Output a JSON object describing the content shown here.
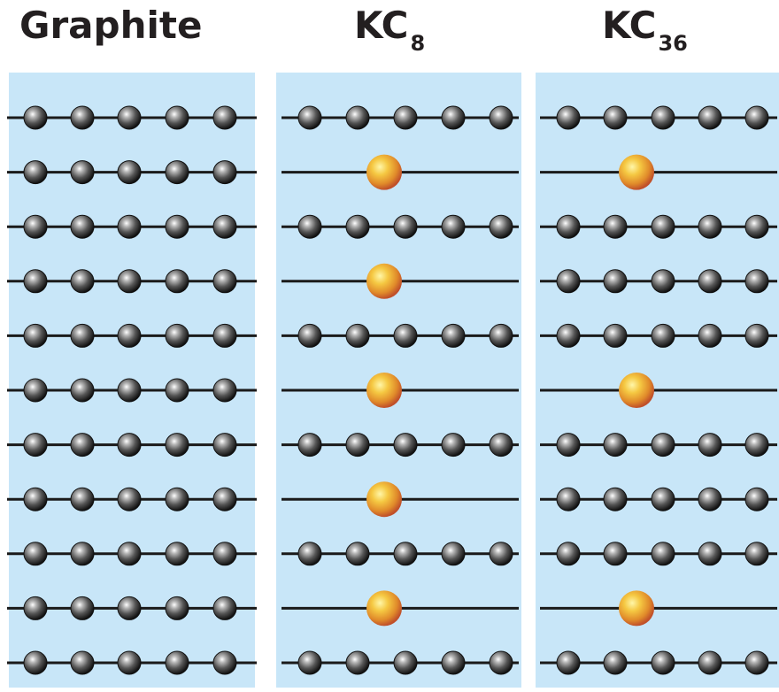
{
  "panels": [
    {
      "title_main": "Graphite",
      "title_sub": "",
      "layers": [
        "C",
        "C",
        "C",
        "C",
        "C",
        "C",
        "C",
        "C",
        "C",
        "C",
        "C"
      ]
    },
    {
      "title_main": "KC",
      "title_sub": "8",
      "layers": [
        "C",
        "K",
        "C",
        "K",
        "C",
        "K",
        "C",
        "K",
        "C",
        "K",
        "C"
      ]
    },
    {
      "title_main": "KC",
      "title_sub": "36",
      "layers": [
        "C",
        "K",
        "C",
        "C",
        "C",
        "K",
        "C",
        "C",
        "C",
        "K",
        "C"
      ]
    }
  ],
  "colors": {
    "panel_background": "#c8e6f8",
    "carbon_atom": "#3a3a3a",
    "potassium_atom": "#e0a030",
    "bond_line": "#1a1a1a"
  }
}
